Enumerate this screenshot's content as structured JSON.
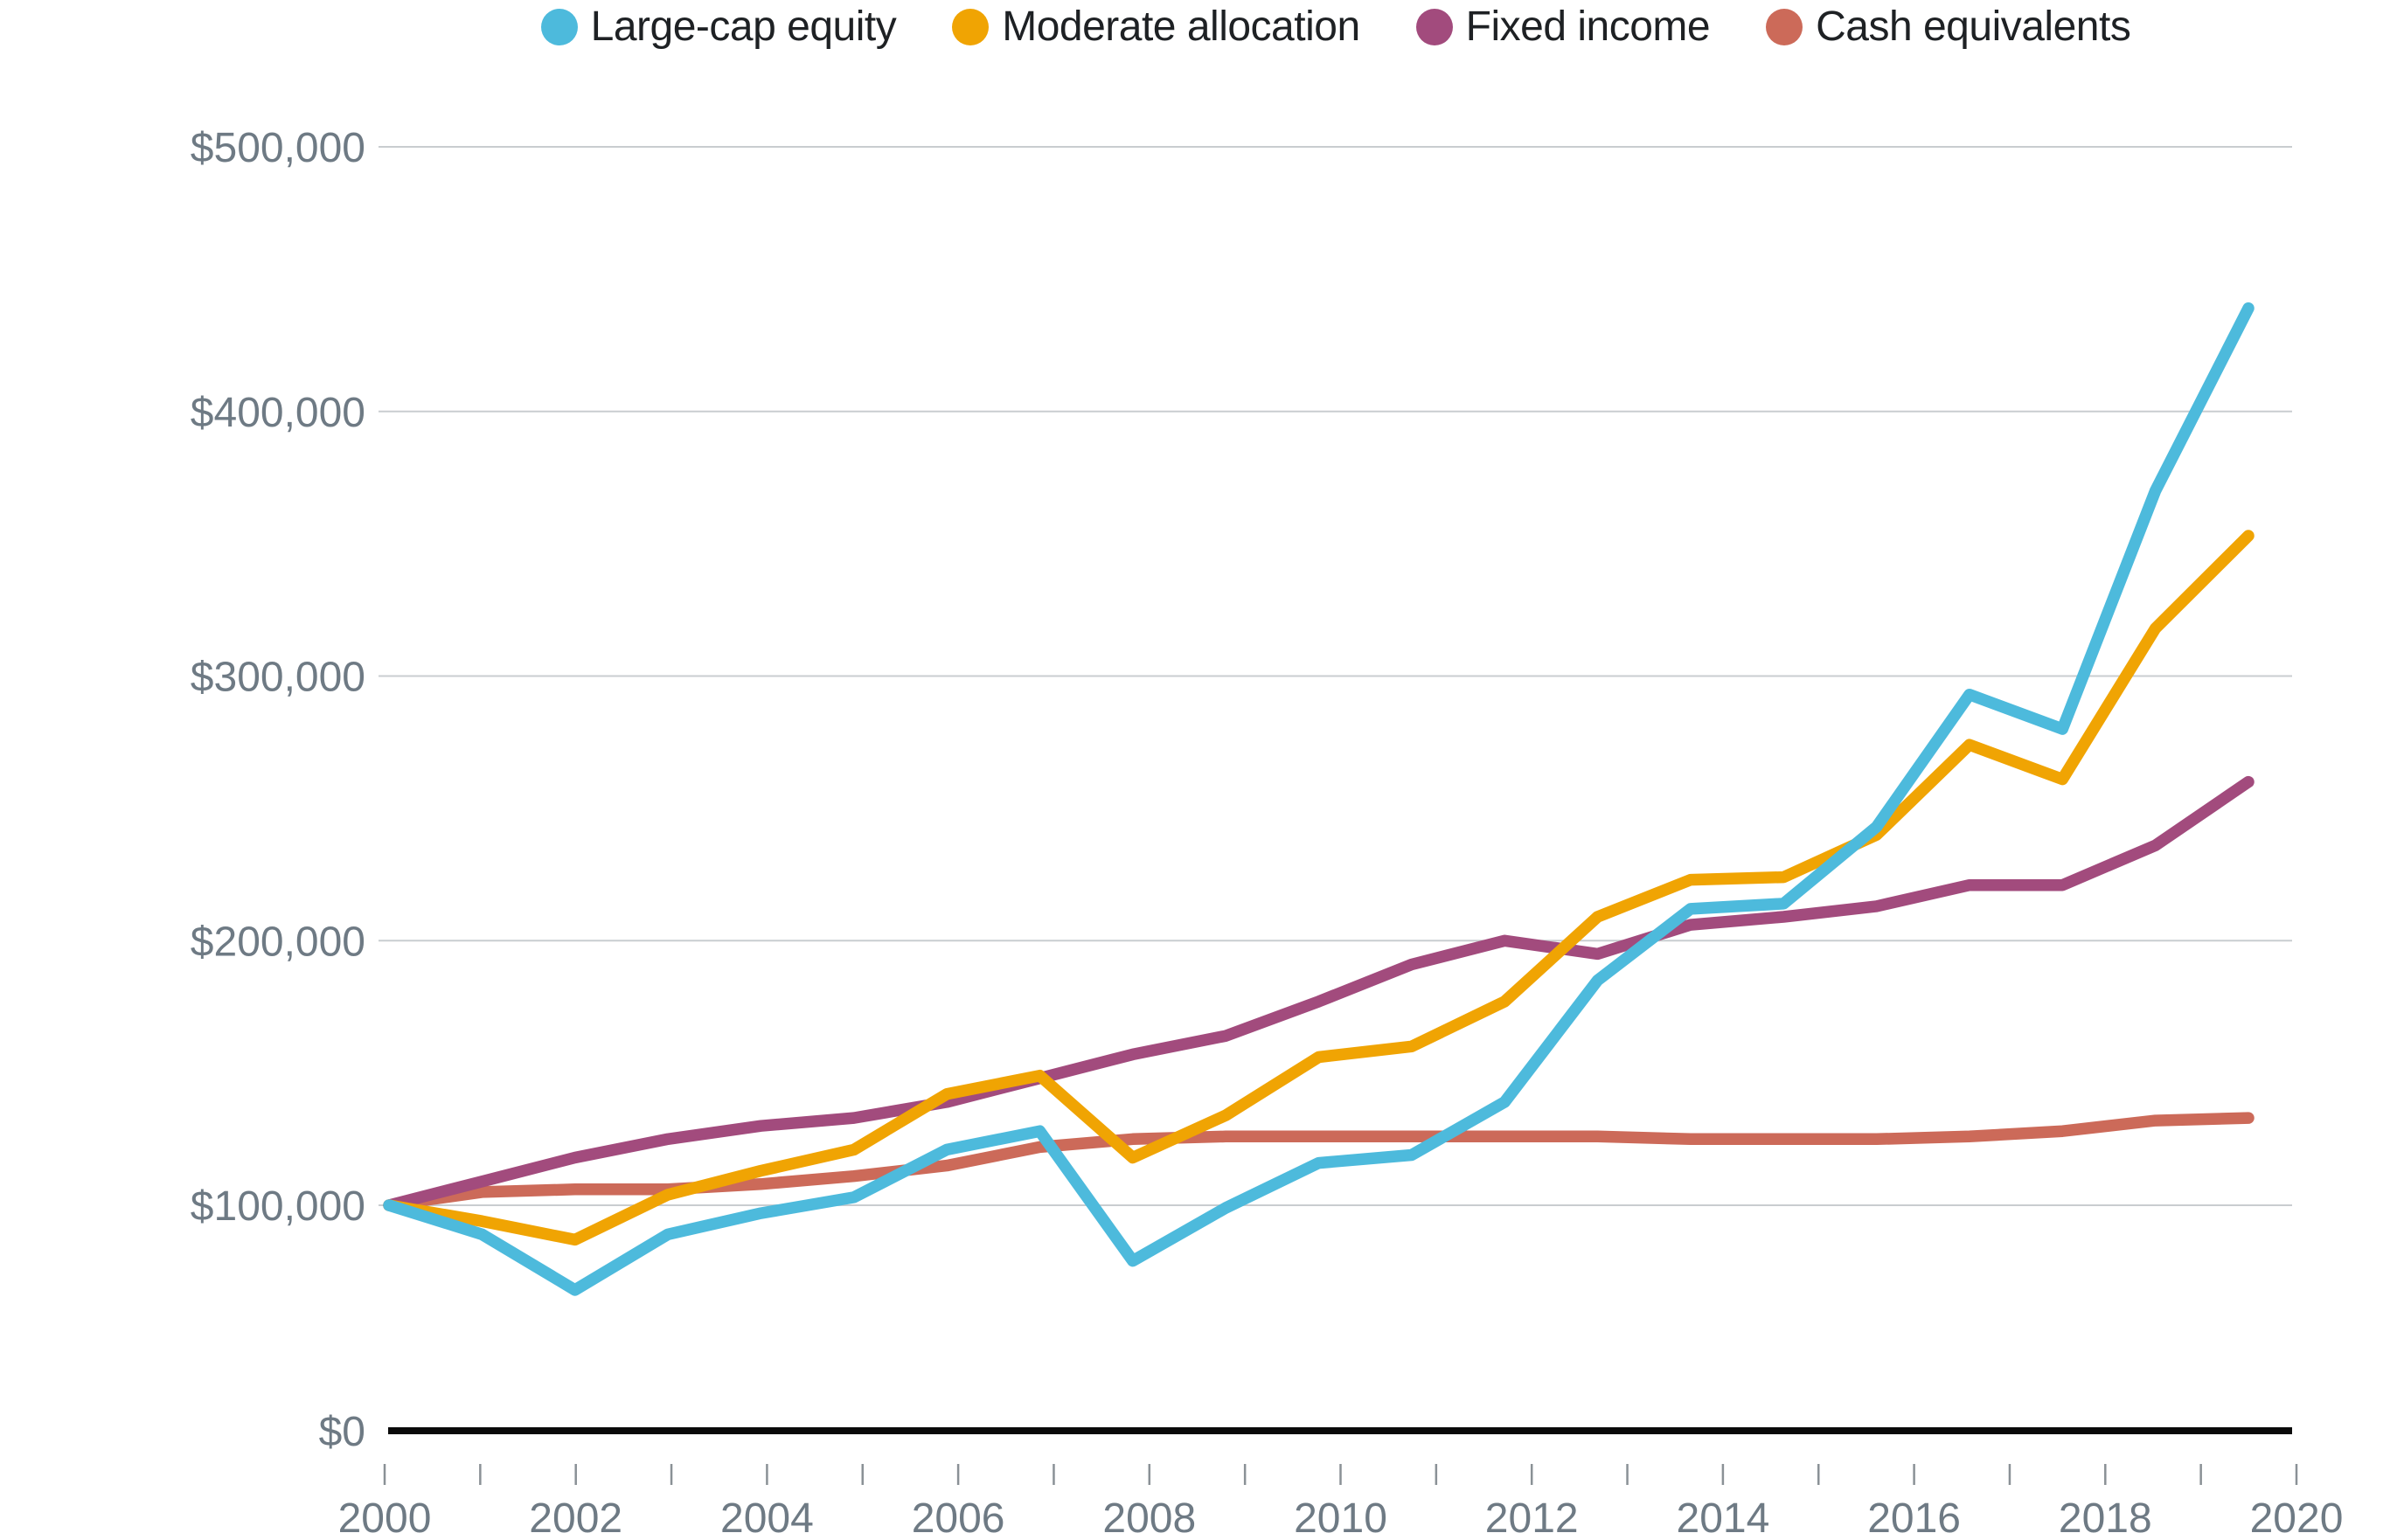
{
  "chart_data": {
    "type": "line",
    "title": "",
    "x_years": [
      2000,
      2001,
      2002,
      2003,
      2004,
      2005,
      2006,
      2007,
      2008,
      2009,
      2010,
      2011,
      2012,
      2013,
      2014,
      2015,
      2016,
      2017,
      2018,
      2019,
      2020
    ],
    "series": [
      {
        "name": "Large-cap equity",
        "color": "#4DBADC",
        "values_usd": [
          100000,
          89000,
          68000,
          89000,
          97000,
          103000,
          121000,
          128000,
          79000,
          99000,
          116000,
          119000,
          139000,
          185000,
          212000,
          214000,
          243000,
          293000,
          280000,
          370000,
          439000
        ]
      },
      {
        "name": "Moderate allocation",
        "color": "#F0A403",
        "values_usd": [
          100000,
          94000,
          87000,
          104000,
          113000,
          121000,
          142000,
          149000,
          118000,
          134000,
          156000,
          160000,
          177000,
          209000,
          223000,
          224000,
          240000,
          274000,
          261000,
          318000,
          353000
        ]
      },
      {
        "name": "Fixed income",
        "color": "#A24B7D",
        "values_usd": [
          100000,
          109000,
          118000,
          125000,
          130000,
          133000,
          139000,
          148000,
          157000,
          164000,
          177000,
          191000,
          200000,
          195000,
          206000,
          209000,
          213000,
          221000,
          221000,
          236000,
          260000
        ]
      },
      {
        "name": "Cash equivalents",
        "color": "#CC6A59",
        "values_usd": [
          100000,
          105000,
          106000,
          106000,
          108000,
          111000,
          115000,
          122000,
          125000,
          126000,
          126000,
          126000,
          126000,
          126000,
          125000,
          125000,
          125000,
          126000,
          128000,
          132000,
          133000
        ]
      }
    ],
    "y_axis": {
      "ticks": [
        {
          "value": 0,
          "label": "$0"
        },
        {
          "value": 100000,
          "label": "$100,000"
        },
        {
          "value": 200000,
          "label": "$200,000"
        },
        {
          "value": 300000,
          "label": "$300,000"
        },
        {
          "value": 400000,
          "label": "$400,000"
        },
        {
          "value": 500000,
          "label": "$500,000"
        }
      ],
      "range": [
        0,
        500000
      ]
    },
    "x_axis": {
      "tick_years": [
        2000,
        2001,
        2002,
        2003,
        2004,
        2005,
        2006,
        2007,
        2008,
        2009,
        2010,
        2011,
        2012,
        2013,
        2014,
        2015,
        2016,
        2017,
        2018,
        2019,
        2020
      ],
      "label_years": [
        2000,
        2002,
        2004,
        2006,
        2008,
        2010,
        2012,
        2014,
        2016,
        2018,
        2020
      ]
    },
    "legend": {
      "position": "top",
      "items": [
        "Large-cap equity",
        "Moderate allocation",
        "Fixed income",
        "Cash equivalents"
      ]
    },
    "grid": "horizontal-only",
    "colors": {
      "background": "#FFFFFF",
      "gridline": "#C9CDD0",
      "axis_line": "#0A0A0A",
      "tick_mark": "#8A9196",
      "axis_text": "#6E7A84",
      "legend_text": "#1E2124"
    }
  }
}
